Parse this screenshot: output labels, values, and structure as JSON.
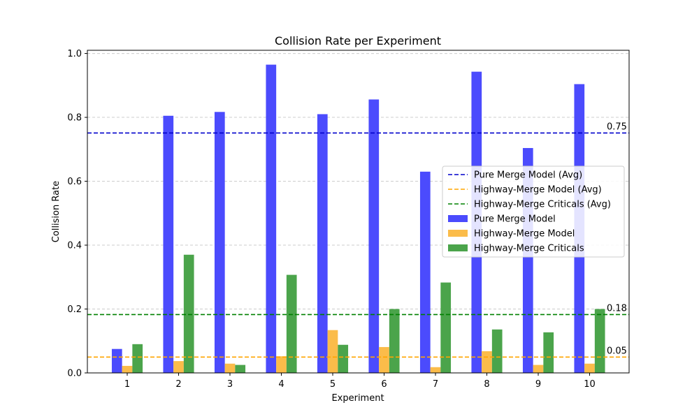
{
  "chart_data": {
    "type": "bar",
    "title": "Collision Rate per Experiment",
    "xlabel": "Experiment",
    "ylabel": "Collision Rate",
    "ylim": [
      0,
      1.01
    ],
    "yticks": [
      "0.0",
      "0.2",
      "0.4",
      "0.6",
      "0.8",
      "1.0"
    ],
    "ytick_values": [
      0,
      0.2,
      0.4,
      0.6,
      0.8,
      1.0
    ],
    "grid": "horizontal dashed",
    "legend_position": "center-right",
    "categories": [
      "1",
      "2",
      "3",
      "4",
      "5",
      "6",
      "7",
      "8",
      "9",
      "10"
    ],
    "series": [
      {
        "name": "Pure Merge Model",
        "color": "#4b4bfd",
        "values": [
          0.075,
          0.805,
          0.817,
          0.965,
          0.81,
          0.856,
          0.63,
          0.943,
          0.704,
          0.904
        ]
      },
      {
        "name": "Highway-Merge Model",
        "color": "#fbbc4a",
        "values": [
          0.022,
          0.037,
          0.029,
          0.052,
          0.134,
          0.081,
          0.018,
          0.068,
          0.025,
          0.029
        ]
      },
      {
        "name": "Highway-Merge Criticals",
        "color": "#4ba44b",
        "values": [
          0.09,
          0.37,
          0.025,
          0.307,
          0.088,
          0.2,
          0.283,
          0.136,
          0.127,
          0.2
        ]
      }
    ],
    "averages": [
      {
        "name": "Pure Merge Model (Avg)",
        "color": "#0000cc",
        "value": 0.751,
        "label": "0.75"
      },
      {
        "name": "Highway-Merge Model (Avg)",
        "color": "#ffa500",
        "value": 0.0495,
        "label": "0.05"
      },
      {
        "name": "Highway-Merge Criticals (Avg)",
        "color": "#008000",
        "value": 0.1826,
        "label": "0.18"
      }
    ]
  }
}
